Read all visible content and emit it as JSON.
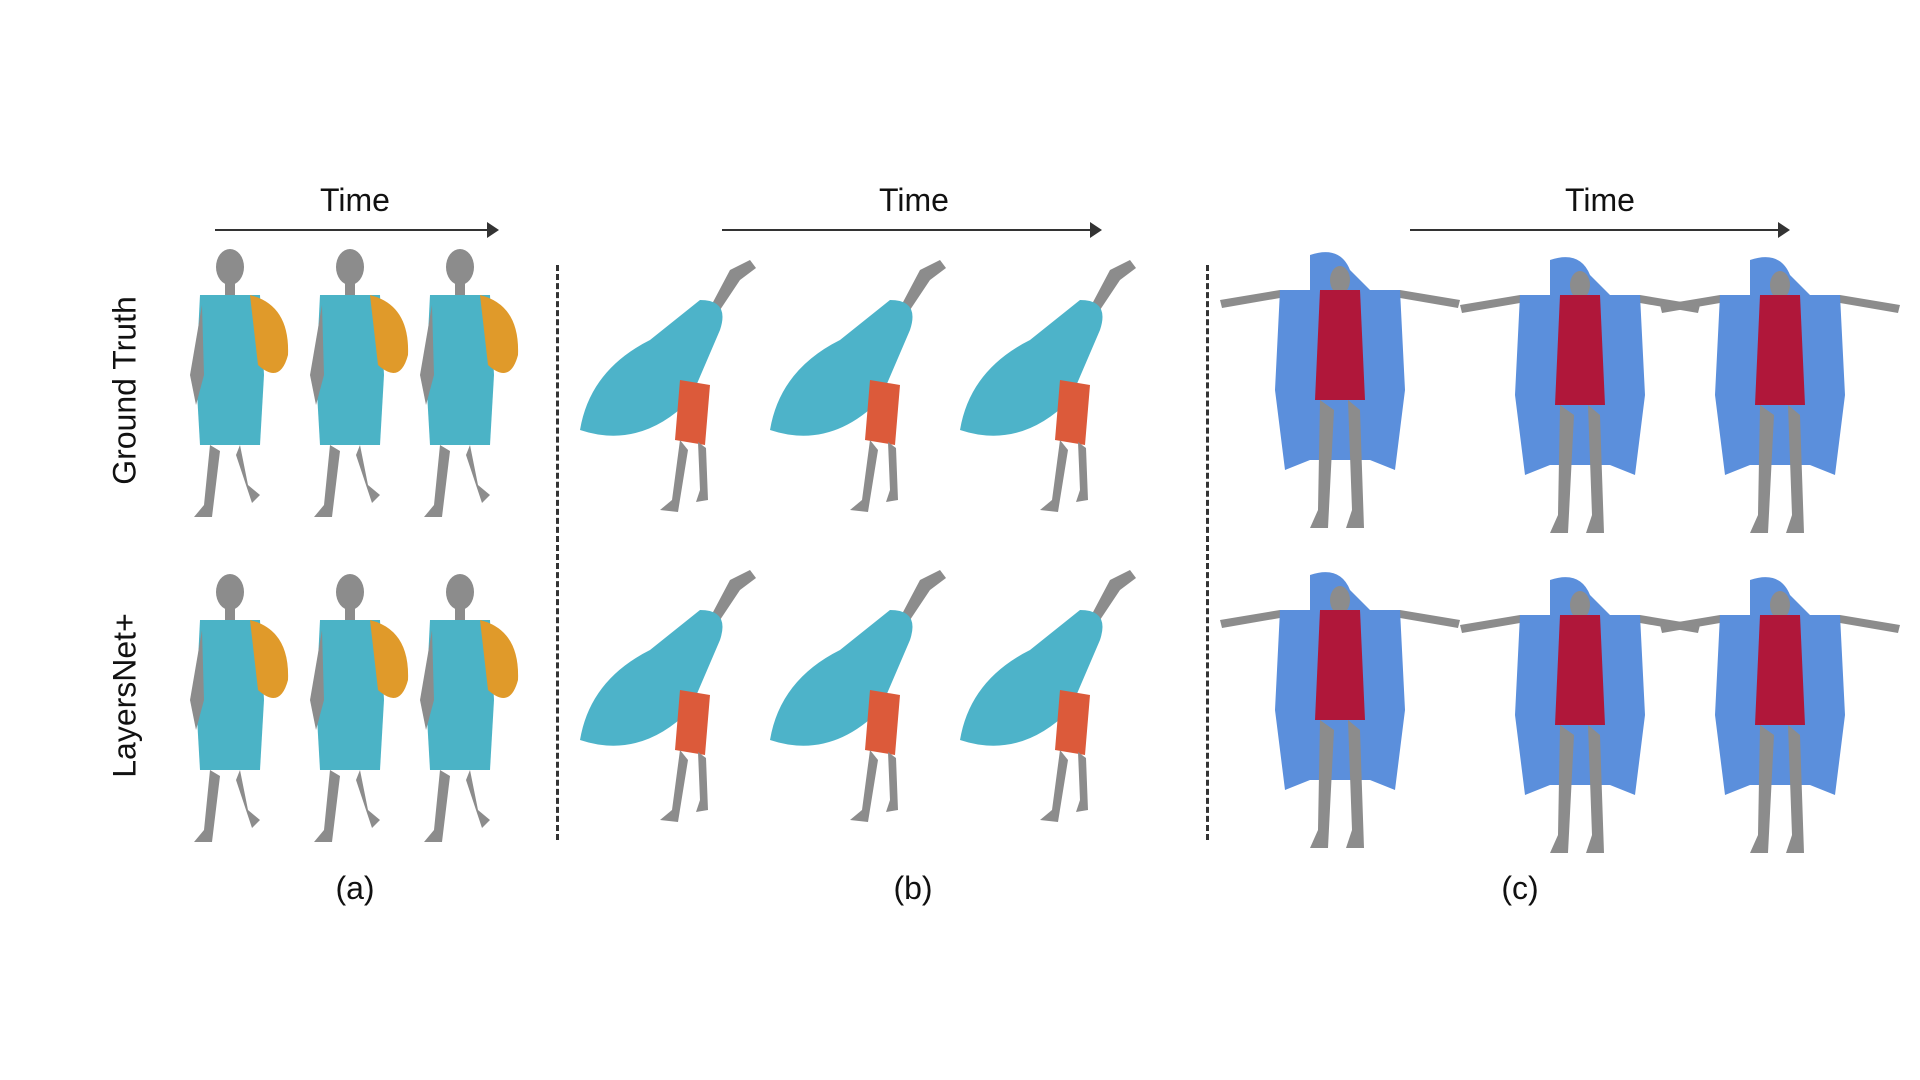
{
  "figure": {
    "time_label": "Time",
    "row_labels": [
      "Ground Truth",
      "LayersNet+"
    ],
    "panel_labels": [
      "(a)",
      "(b)",
      "(c)"
    ],
    "colors": {
      "body": "#8c8c8c",
      "panel_a_dress": "#4bb3c6",
      "panel_a_sleeve": "#e09a2a",
      "panel_b_cape": "#4db3c9",
      "panel_b_dress": "#dc5a3a",
      "panel_c_robe": "#5b8fdc",
      "panel_c_dress": "#b0173a"
    }
  }
}
